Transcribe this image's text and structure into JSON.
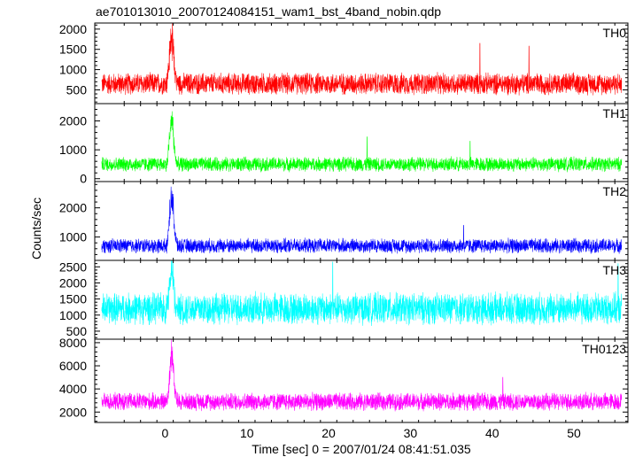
{
  "title": "ae701013010_20070124084151_wam1_bst_4band_nobin.qdp",
  "xlabel": "Time [sec] 0 = 2007/01/24 08:41:51.035",
  "ylabel": "Counts/sec",
  "colors": {
    "TH0": "#ff0000",
    "TH1": "#00ff00",
    "TH2": "#0000ff",
    "TH3": "#00ffff",
    "TH0123": "#ff00ff"
  },
  "chart_data": {
    "type": "line",
    "x_range": [
      -8.6,
      56.6
    ],
    "x_ticks": [
      0,
      10,
      20,
      30,
      40,
      50
    ],
    "x_tick_labels": [
      "0",
      "10",
      "20",
      "30",
      "40",
      "50"
    ],
    "grid": false,
    "legend": "panel labels at top-right of each panel",
    "panels": [
      {
        "name": "TH0",
        "ylim": [
          160,
          2150
        ],
        "yticks": [
          500,
          1000,
          1500,
          2000
        ],
        "ytick_labels": [
          "500",
          "1000",
          "1500",
          "2000"
        ],
        "baseline_mean": 650,
        "noise_amplitude": 300,
        "burst": {
          "peak_time": 0.8,
          "peak_value": 2150
        },
        "spikes": [
          {
            "time": 38.5,
            "value": 1650
          },
          {
            "time": 44.5,
            "value": 1580
          }
        ]
      },
      {
        "name": "TH1",
        "ylim": [
          -100,
          2600
        ],
        "yticks": [
          0,
          1000,
          2000
        ],
        "ytick_labels": [
          "0",
          "1000",
          "2000"
        ],
        "baseline_mean": 500,
        "noise_amplitude": 280,
        "burst": {
          "peak_time": 0.8,
          "peak_value": 2500
        },
        "spikes": [
          {
            "time": 24.7,
            "value": 1450
          },
          {
            "time": 37.3,
            "value": 1300
          }
        ]
      },
      {
        "name": "TH2",
        "ylim": [
          200,
          2900
        ],
        "yticks": [
          1000,
          2000
        ],
        "ytick_labels": [
          "1000",
          "2000"
        ],
        "baseline_mean": 700,
        "noise_amplitude": 280,
        "burst": {
          "peak_time": 0.8,
          "peak_value": 2900
        },
        "spikes": [
          {
            "time": 36.5,
            "value": 1400
          }
        ]
      },
      {
        "name": "TH3",
        "ylim": [
          250,
          2700
        ],
        "yticks": [
          500,
          1000,
          1500,
          2000,
          2500
        ],
        "ytick_labels": [
          "500",
          "1000",
          "1500",
          "2000",
          "2500"
        ],
        "baseline_mean": 1200,
        "noise_amplitude": 550,
        "burst": {
          "peak_time": 0.8,
          "peak_value": 2700
        },
        "spikes": [
          {
            "time": 20.5,
            "value": 2650
          },
          {
            "time": 55.4,
            "value": 2600
          }
        ]
      },
      {
        "name": "TH0123",
        "ylim": [
          1100,
          8300
        ],
        "yticks": [
          2000,
          4000,
          6000,
          8000
        ],
        "ytick_labels": [
          "2000",
          "4000",
          "6000",
          "8000"
        ],
        "baseline_mean": 2900,
        "noise_amplitude": 850,
        "burst": {
          "peak_time": 0.8,
          "peak_value": 8200
        },
        "spikes": [
          {
            "time": 41.3,
            "value": 5000
          }
        ]
      }
    ]
  }
}
